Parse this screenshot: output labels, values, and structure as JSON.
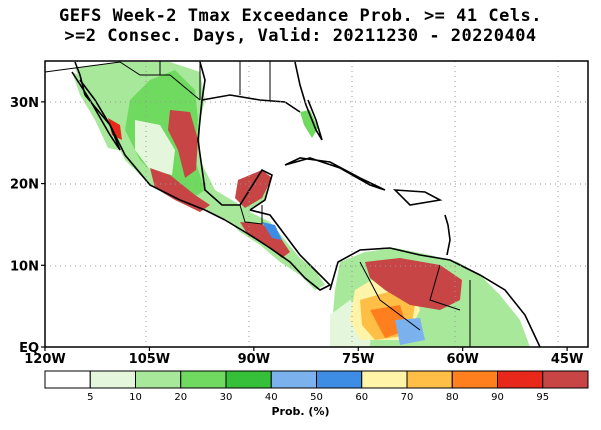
{
  "title": {
    "line1": "GEFS Week-2 Tmax Exceedance Prob. >= 41 Cels.",
    "line2": ">=2 Consec. Days, Valid: 20211230 - 20220404"
  },
  "axes": {
    "lat_labels": [
      "30N",
      "20N",
      "10N",
      "EQ"
    ],
    "lat_values": [
      30,
      20,
      10,
      0
    ],
    "lon_labels": [
      "120W",
      "105W",
      "90W",
      "75W",
      "60W",
      "45W"
    ],
    "lon_values": [
      -120,
      -105,
      -90,
      -75,
      -60,
      -45
    ],
    "extent": {
      "lon_min": -120,
      "lon_max": -42,
      "lat_min": 0,
      "lat_max": 35
    },
    "gridlines": "dotted"
  },
  "legend": {
    "title": "Prob. (%)",
    "tick_labels": [
      "5",
      "10",
      "20",
      "30",
      "40",
      "50",
      "60",
      "70",
      "80",
      "90",
      "95"
    ],
    "colors": [
      "#ffffff",
      "#e4f7dc",
      "#a8e89a",
      "#6fda5f",
      "#36c03a",
      "#7bb2ee",
      "#3d8de4",
      "#fff4a8",
      "#ffbf46",
      "#ff7f1f",
      "#e8281a",
      "#c74545"
    ]
  }
}
